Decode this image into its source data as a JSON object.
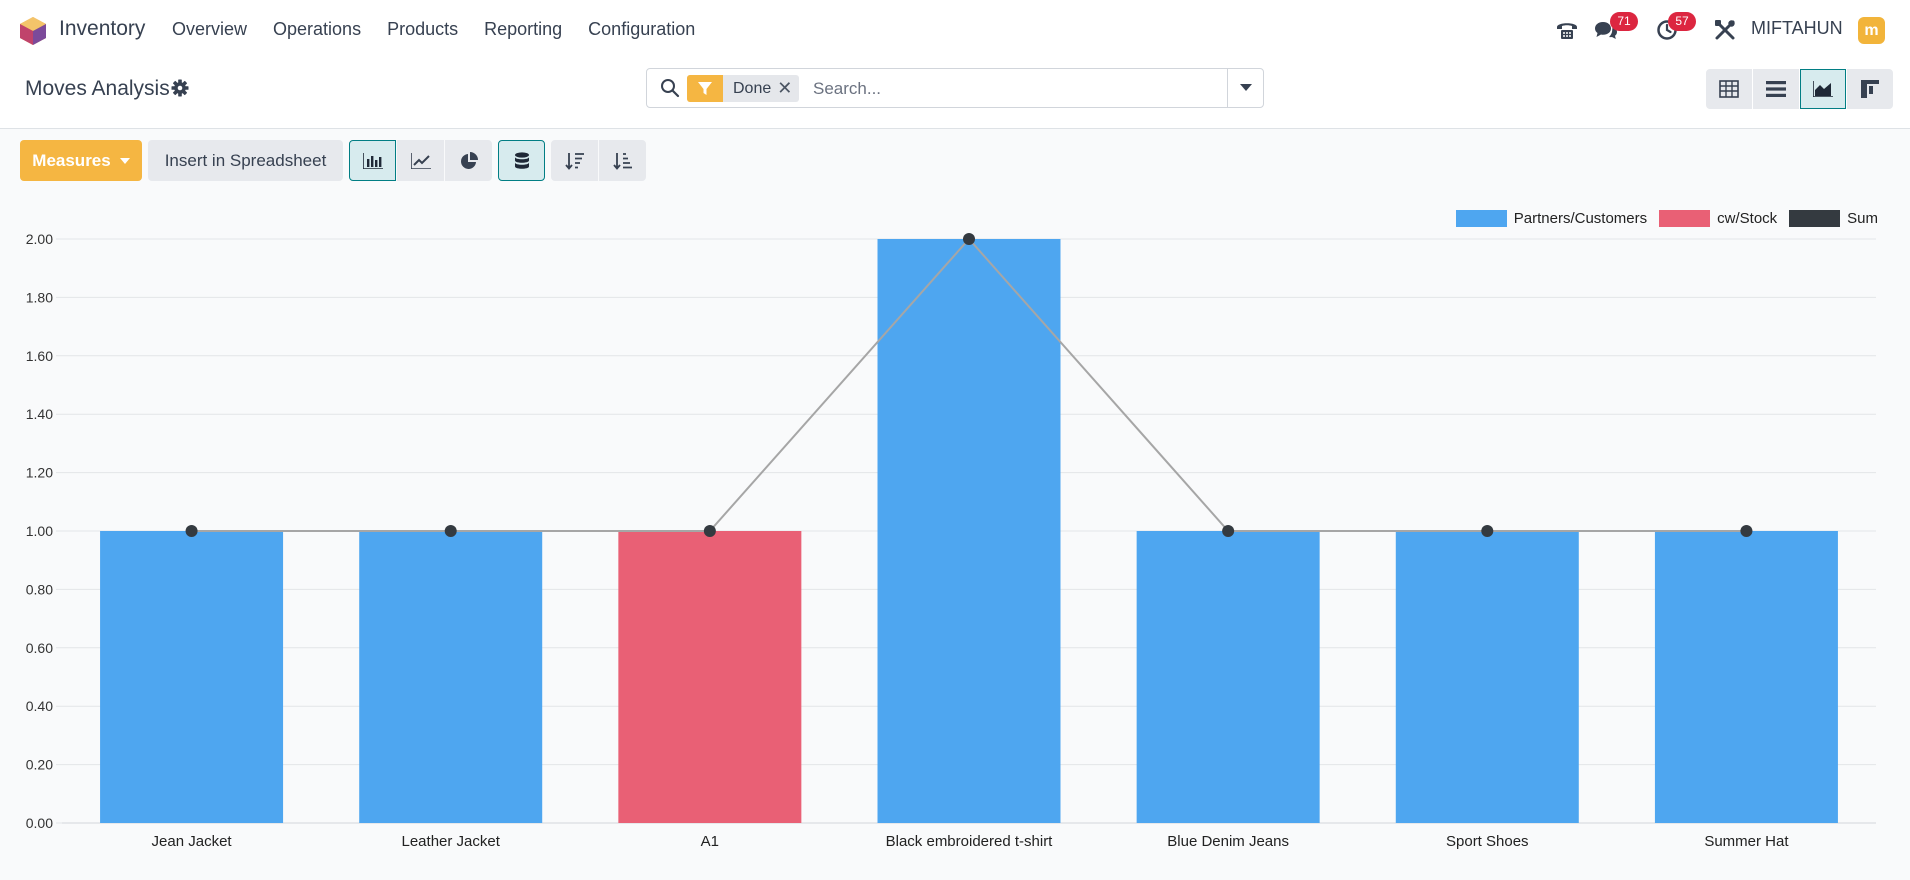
{
  "navbar": {
    "app_name": "Inventory",
    "menu": [
      "Overview",
      "Operations",
      "Products",
      "Reporting",
      "Configuration"
    ],
    "messages_count": "71",
    "activities_count": "57",
    "user_name": "MIFTAHUN",
    "avatar_letter": "m"
  },
  "control": {
    "title": "Moves Analysis",
    "facet_value": "Done",
    "search_placeholder": "Search..."
  },
  "toolbar": {
    "measures_label": "Measures",
    "spreadsheet_label": "Insert in Spreadsheet"
  },
  "colors": {
    "accent": "#f5b642",
    "active_border": "#017e84",
    "bar_blue": "#4ea6f0",
    "bar_red": "#e96075",
    "line": "#a6a6a6",
    "marker": "#343a40"
  },
  "chart_data": {
    "type": "bar",
    "categories": [
      "Jean Jacket",
      "Leather Jacket",
      "A1",
      "Black embroidered t-shirt",
      "Blue Denim Jeans",
      "Sport Shoes",
      "Summer Hat"
    ],
    "series": [
      {
        "name": "Partners/Customers",
        "color": "#4ea6f0",
        "values": [
          1,
          1,
          0,
          2,
          1,
          1,
          1
        ]
      },
      {
        "name": "cw/Stock",
        "color": "#e96075",
        "values": [
          0,
          0,
          1,
          0,
          0,
          0,
          0
        ]
      }
    ],
    "sum": {
      "name": "Sum",
      "color": "#343a40",
      "values": [
        1,
        1,
        1,
        2,
        1,
        1,
        1
      ]
    },
    "stacked": true,
    "ylim": [
      0,
      2
    ],
    "yticks": [
      "0.00",
      "0.20",
      "0.40",
      "0.60",
      "0.80",
      "1.00",
      "1.20",
      "1.40",
      "1.60",
      "1.80",
      "2.00"
    ],
    "legend_position": "top-right",
    "grid": true
  }
}
